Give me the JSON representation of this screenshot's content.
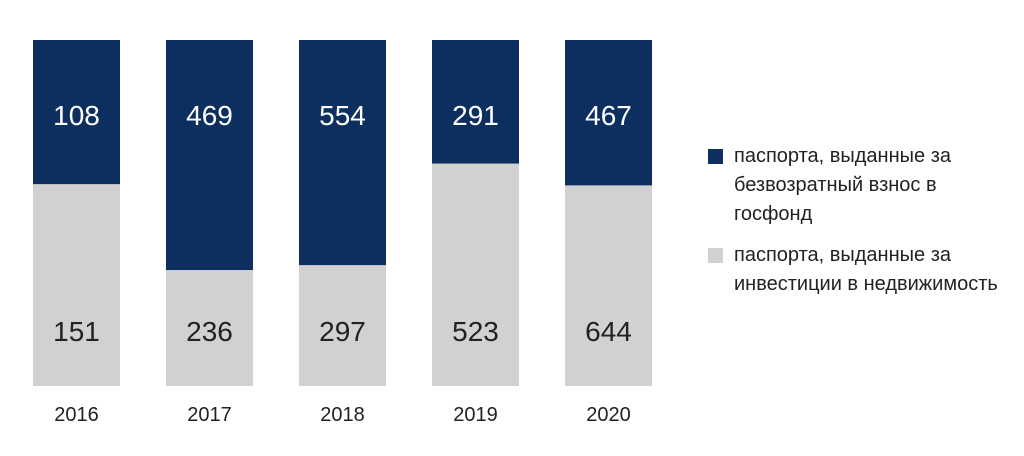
{
  "chart_data": {
    "type": "bar",
    "stacked": "percent",
    "categories": [
      "2016",
      "2017",
      "2018",
      "2019",
      "2020"
    ],
    "series": [
      {
        "name": "паспорта, выданные за инвестиции в недвижимость",
        "values": [
          151,
          236,
          297,
          523,
          644
        ],
        "color": "#d1d1d1"
      },
      {
        "name": "паспорта, выданные за безвозратный взнос в госфонд",
        "values": [
          108,
          469,
          554,
          291,
          467
        ],
        "color": "#0d2f5f"
      }
    ],
    "legend_position": "right",
    "grid": false
  },
  "legend": [
    {
      "label": "паспорта, выданные за безвозратный взнос в госфонд",
      "color": "#0d2f5f"
    },
    {
      "label": "паспорта, выданные за инвестиции в недвижимость",
      "color": "#d1d1d1"
    }
  ]
}
